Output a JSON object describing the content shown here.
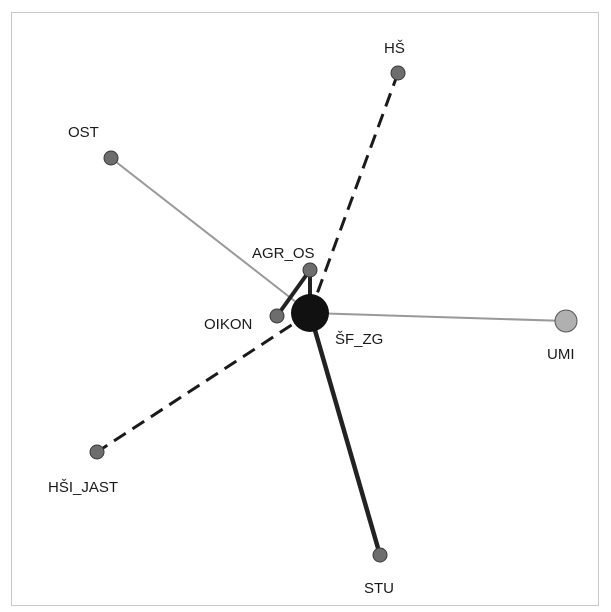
{
  "nodes": {
    "hs": {
      "label": "HŠ",
      "color": "#6d6d6d"
    },
    "ost": {
      "label": "OST",
      "color": "#6d6d6d"
    },
    "agr_os": {
      "label": "AGR_OS",
      "color": "#6d6d6d"
    },
    "oikon": {
      "label": "OIKON",
      "color": "#6d6d6d"
    },
    "sf_zg": {
      "label": "ŠF_ZG",
      "color": "#111111"
    },
    "umi": {
      "label": "UMI",
      "color": "#b0b0b0"
    },
    "hsi_jast": {
      "label": "HŠI_JAST",
      "color": "#6d6d6d"
    },
    "stu": {
      "label": "STU",
      "color": "#6d6d6d"
    }
  },
  "edges": [
    {
      "from": "sf_zg",
      "to": "hs",
      "style": "dashed",
      "color": "#1a1a1a"
    },
    {
      "from": "sf_zg",
      "to": "ost",
      "style": "solid",
      "color": "#999999"
    },
    {
      "from": "sf_zg",
      "to": "umi",
      "style": "solid",
      "color": "#999999"
    },
    {
      "from": "sf_zg",
      "to": "stu",
      "style": "solid",
      "color": "#222222"
    },
    {
      "from": "sf_zg",
      "to": "hsi_jast",
      "style": "dashed",
      "color": "#1a1a1a"
    },
    {
      "from": "sf_zg",
      "to": "agr_os",
      "style": "solid",
      "color": "#222222"
    },
    {
      "from": "sf_zg",
      "to": "oikon",
      "style": "solid",
      "color": "#222222"
    }
  ]
}
